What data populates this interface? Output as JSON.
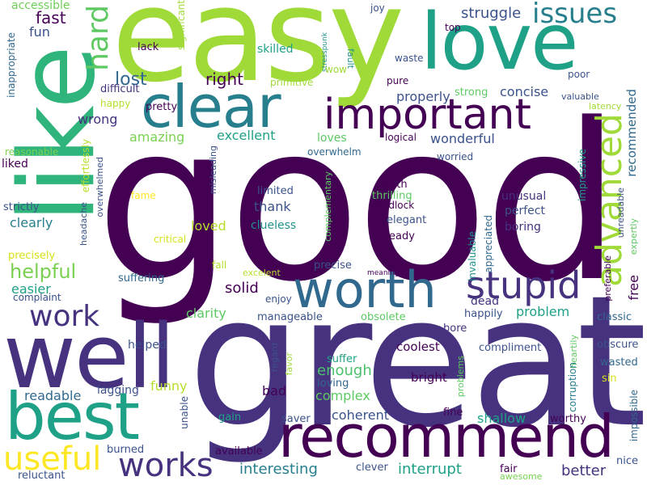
{
  "colors": {
    "background": "#ffffff",
    "palette": [
      "#440154",
      "#46327e",
      "#365c8d",
      "#277f8e",
      "#1fa187",
      "#4ac16d",
      "#a0da39",
      "#fde725"
    ]
  },
  "words": [
    {
      "text": "good",
      "color": "#440154"
    },
    {
      "text": "great",
      "color": "#46327e"
    },
    {
      "text": "easy",
      "color": "#a0da39"
    },
    {
      "text": "love",
      "color": "#1fa187"
    },
    {
      "text": "like",
      "color": "#2fb47c"
    },
    {
      "text": "well",
      "color": "#46327e"
    },
    {
      "text": "best",
      "color": "#1fa187"
    },
    {
      "text": "recommend",
      "color": "#440154"
    },
    {
      "text": "clear",
      "color": "#277f8e"
    },
    {
      "text": "worth",
      "color": "#31688e"
    },
    {
      "text": "important",
      "color": "#440154"
    },
    {
      "text": "stupid",
      "color": "#46327e"
    },
    {
      "text": "advanced",
      "color": "#a0da39"
    },
    {
      "text": "useful",
      "color": "#fde725"
    },
    {
      "text": "works",
      "color": "#46327e"
    },
    {
      "text": "hard",
      "color": "#5ec962"
    },
    {
      "text": "issues",
      "color": "#277f8e"
    },
    {
      "text": "work",
      "color": "#46327e"
    },
    {
      "text": "helpful",
      "color": "#7ad151"
    },
    {
      "text": "lost",
      "color": "#31688e"
    },
    {
      "text": "right",
      "color": "#440154"
    },
    {
      "text": "struggle",
      "color": "#3b528b"
    },
    {
      "text": "fast",
      "color": "#440154"
    },
    {
      "text": "fun",
      "color": "#3b528b"
    },
    {
      "text": "accessible",
      "color": "#6ece58"
    },
    {
      "text": "inappropriate",
      "color": "#31688e"
    },
    {
      "text": "lack",
      "color": "#440154"
    },
    {
      "text": "significant",
      "color": "#a0da39"
    },
    {
      "text": "skilled",
      "color": "#1fa187"
    },
    {
      "text": "stresspunk",
      "color": "#21918c"
    },
    {
      "text": "fault",
      "color": "#21918c"
    },
    {
      "text": "joy",
      "color": "#3b528b"
    },
    {
      "text": "top",
      "color": "#440154"
    },
    {
      "text": "waste",
      "color": "#3b528b"
    },
    {
      "text": "pure",
      "color": "#440154"
    },
    {
      "text": "poor",
      "color": "#3b528b"
    },
    {
      "text": "valuable",
      "color": "#3b528b"
    },
    {
      "text": "latency",
      "color": "#a0da39"
    },
    {
      "text": "recommended",
      "color": "#31688e"
    },
    {
      "text": "primitive",
      "color": "#a0da39"
    },
    {
      "text": "wow",
      "color": "#a0da39"
    },
    {
      "text": "strong",
      "color": "#5ec962"
    },
    {
      "text": "properly",
      "color": "#3b528b"
    },
    {
      "text": "concise",
      "color": "#3b528b"
    },
    {
      "text": "difficult",
      "color": "#46327e"
    },
    {
      "text": "happy",
      "color": "#b5de2b"
    },
    {
      "text": "pretty",
      "color": "#440154"
    },
    {
      "text": "wrong",
      "color": "#46327e"
    },
    {
      "text": "amazing",
      "color": "#7ad151"
    },
    {
      "text": "excellent",
      "color": "#1fa187"
    },
    {
      "text": "loves",
      "color": "#5ec962"
    },
    {
      "text": "wonderful",
      "color": "#3b528b"
    },
    {
      "text": "logical",
      "color": "#440154"
    },
    {
      "text": "worried",
      "color": "#3b528b"
    },
    {
      "text": "reasonable",
      "color": "#7ad151"
    },
    {
      "text": "effortlessly",
      "color": "#b5de2b"
    },
    {
      "text": "liked",
      "color": "#440154"
    },
    {
      "text": "overwhelm",
      "color": "#31688e"
    },
    {
      "text": "overwhelmed",
      "color": "#3b528b"
    },
    {
      "text": "impressive",
      "color": "#1fa187"
    },
    {
      "text": "expertly",
      "color": "#5ec962"
    },
    {
      "text": "unreadable",
      "color": "#3b528b"
    },
    {
      "text": "preferable",
      "color": "#440154"
    },
    {
      "text": "misleading",
      "color": "#3b528b"
    },
    {
      "text": "complementary",
      "color": "#5ec962"
    },
    {
      "text": "death",
      "color": "#440154"
    },
    {
      "text": "thrilling",
      "color": "#5ec962"
    },
    {
      "text": "deadlock",
      "color": "#440154"
    },
    {
      "text": "elegant",
      "color": "#3b528b"
    },
    {
      "text": "limited",
      "color": "#3b528b"
    },
    {
      "text": "unusual",
      "color": "#46327e"
    },
    {
      "text": "perfect",
      "color": "#3b528b"
    },
    {
      "text": "boring",
      "color": "#46327e"
    },
    {
      "text": "appreciated",
      "color": "#31688e"
    },
    {
      "text": "invaluable",
      "color": "#21918c"
    },
    {
      "text": "strictly",
      "color": "#3b528b"
    },
    {
      "text": "headache",
      "color": "#3b528b"
    },
    {
      "text": "fame",
      "color": "#fde725"
    },
    {
      "text": "critical",
      "color": "#d8e219"
    },
    {
      "text": "thank",
      "color": "#3b528b"
    },
    {
      "text": "clueless",
      "color": "#21918c"
    },
    {
      "text": "ready",
      "color": "#440154"
    },
    {
      "text": "loved",
      "color": "#b5de2b"
    },
    {
      "text": "clearly",
      "color": "#277f8e"
    },
    {
      "text": "precisely",
      "color": "#d8e219"
    },
    {
      "text": "fall",
      "color": "#b5de2b"
    },
    {
      "text": "excelent",
      "color": "#b5de2b"
    },
    {
      "text": "precise",
      "color": "#3b528b"
    },
    {
      "text": "meaningful",
      "color": "#440154"
    },
    {
      "text": "free",
      "color": "#440154"
    },
    {
      "text": "easier",
      "color": "#1fa187"
    },
    {
      "text": "complaint",
      "color": "#3b528b"
    },
    {
      "text": "suffering",
      "color": "#31688e"
    },
    {
      "text": "solid",
      "color": "#440154"
    },
    {
      "text": "enjoy",
      "color": "#3b528b"
    },
    {
      "text": "dead",
      "color": "#46327e"
    },
    {
      "text": "happily",
      "color": "#3b528b"
    },
    {
      "text": "problem",
      "color": "#1fa187"
    },
    {
      "text": "classic",
      "color": "#31688e"
    },
    {
      "text": "clarity",
      "color": "#5ec962"
    },
    {
      "text": "manageable",
      "color": "#3b528b"
    },
    {
      "text": "obsolete",
      "color": "#5ec962"
    },
    {
      "text": "bore",
      "color": "#46327e"
    },
    {
      "text": "helped",
      "color": "#3b528b"
    },
    {
      "text": "coolest",
      "color": "#440154"
    },
    {
      "text": "compliment",
      "color": "#3b528b"
    },
    {
      "text": "obscure",
      "color": "#3b528b"
    },
    {
      "text": "suffer",
      "color": "#1fa187"
    },
    {
      "text": "heartily",
      "color": "#5ec962"
    },
    {
      "text": "wasted",
      "color": "#31688e"
    },
    {
      "text": "regard",
      "color": "#3b528b"
    },
    {
      "text": "favor",
      "color": "#a0da39"
    },
    {
      "text": "enough",
      "color": "#4ac16d"
    },
    {
      "text": "bright",
      "color": "#440154"
    },
    {
      "text": "problems",
      "color": "#5ec962"
    },
    {
      "text": "corruption",
      "color": "#277f8e"
    },
    {
      "text": "sin",
      "color": "#d8e219"
    },
    {
      "text": "readable",
      "color": "#31688e"
    },
    {
      "text": "lagging",
      "color": "#3b528b"
    },
    {
      "text": "funny",
      "color": "#b5de2b"
    },
    {
      "text": "bad",
      "color": "#440154"
    },
    {
      "text": "complex",
      "color": "#5ec962"
    },
    {
      "text": "loving",
      "color": "#31688e"
    },
    {
      "text": "unable",
      "color": "#3b528b"
    },
    {
      "text": "coherent",
      "color": "#3b528b"
    },
    {
      "text": "fine",
      "color": "#440154"
    },
    {
      "text": "shallow",
      "color": "#1fa187"
    },
    {
      "text": "worthy",
      "color": "#440154"
    },
    {
      "text": "impossible",
      "color": "#31688e"
    },
    {
      "text": "gain",
      "color": "#1fa187"
    },
    {
      "text": "saver",
      "color": "#3b528b"
    },
    {
      "text": "burned",
      "color": "#3b528b"
    },
    {
      "text": "available",
      "color": "#440154"
    },
    {
      "text": "interesting",
      "color": "#277f8e"
    },
    {
      "text": "interrupt",
      "color": "#1fa187"
    },
    {
      "text": "better",
      "color": "#46327e"
    },
    {
      "text": "clever",
      "color": "#3b528b"
    },
    {
      "text": "fair",
      "color": "#440154"
    },
    {
      "text": "awesome",
      "color": "#7ad151"
    },
    {
      "text": "nice",
      "color": "#3b528b"
    },
    {
      "text": "reluctant",
      "color": "#3b528b"
    }
  ]
}
